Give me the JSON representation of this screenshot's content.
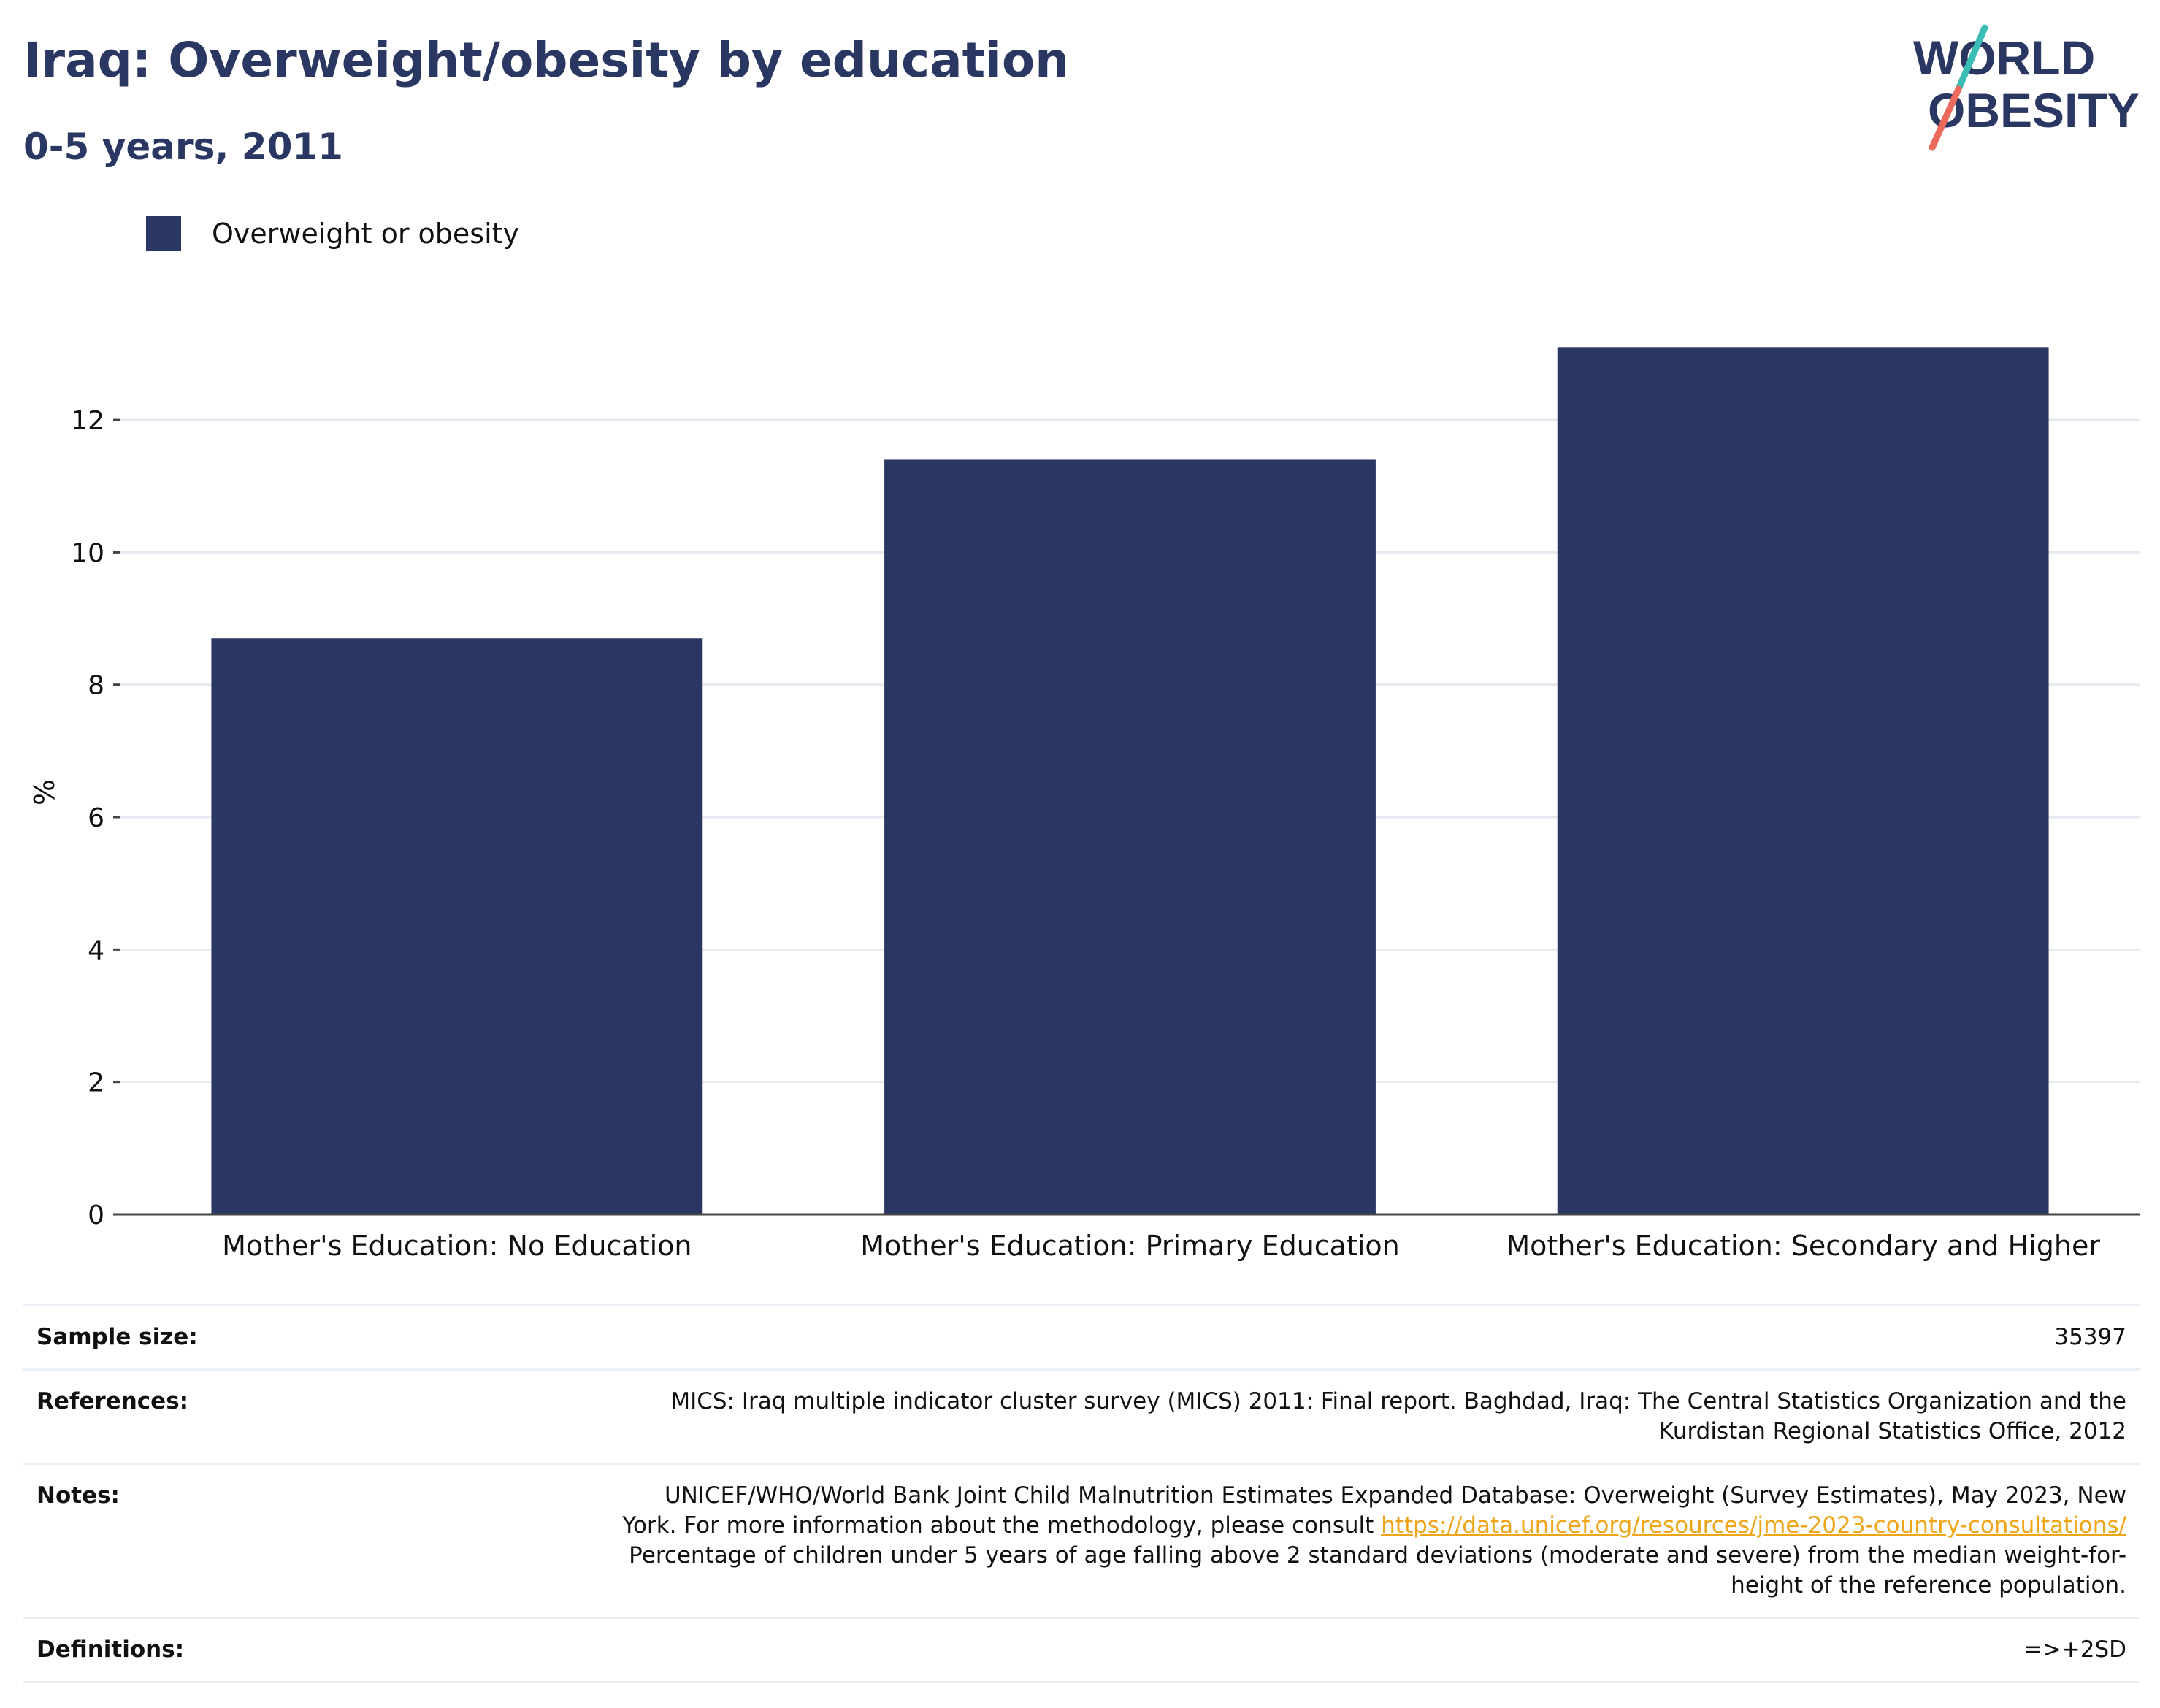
{
  "header": {
    "title": "Iraq: Overweight/obesity by education",
    "subtitle": "0-5 years, 2011"
  },
  "logo": {
    "line1": "WORLD",
    "line2": "OBESITY"
  },
  "colors": {
    "bar": "#2a3762",
    "text_dark": "#2a3762",
    "grid": "#e6e9f0",
    "logo_teal": "#3bbdb5",
    "logo_coral": "#ec6a5b",
    "link": "#f0a517"
  },
  "chart_data": {
    "type": "bar",
    "categories": [
      "Mother's Education: No Education",
      "Mother's Education: Primary Education",
      "Mother's Education: Secondary and Higher"
    ],
    "series": [
      {
        "name": "Overweight or obesity",
        "values": [
          8.7,
          11.4,
          13.1
        ]
      }
    ],
    "ylabel": "%",
    "ylim": [
      0,
      13.6
    ],
    "yticks": [
      0,
      2,
      4,
      6,
      8,
      10,
      12
    ],
    "grid": true,
    "legend": "top-left"
  },
  "info": {
    "sample_size": {
      "label": "Sample size:",
      "value": "35397"
    },
    "references": {
      "label": "References:",
      "line1": "MICS: Iraq multiple indicator cluster survey (MICS) 2011: Final report. Baghdad, Iraq: The Central Statistics Organization and the",
      "line2": "Kurdistan Regional Statistics Office, 2012"
    },
    "notes": {
      "label": "Notes:",
      "line1": "UNICEF/WHO/World Bank Joint Child Malnutrition Estimates Expanded Database: Overweight (Survey Estimates), May 2023, New",
      "line2_pre": "York. For more information about the methodology, please consult",
      "link": "https://data.unicef.org/resources/jme-2023-country-consultations/",
      "line3": "Percentage of children under 5 years of age falling above 2 standard deviations (moderate and severe) from the median weight-for-",
      "line4": "height of the reference population."
    },
    "definitions": {
      "label": "Definitions:",
      "value": "=>+2SD"
    }
  }
}
